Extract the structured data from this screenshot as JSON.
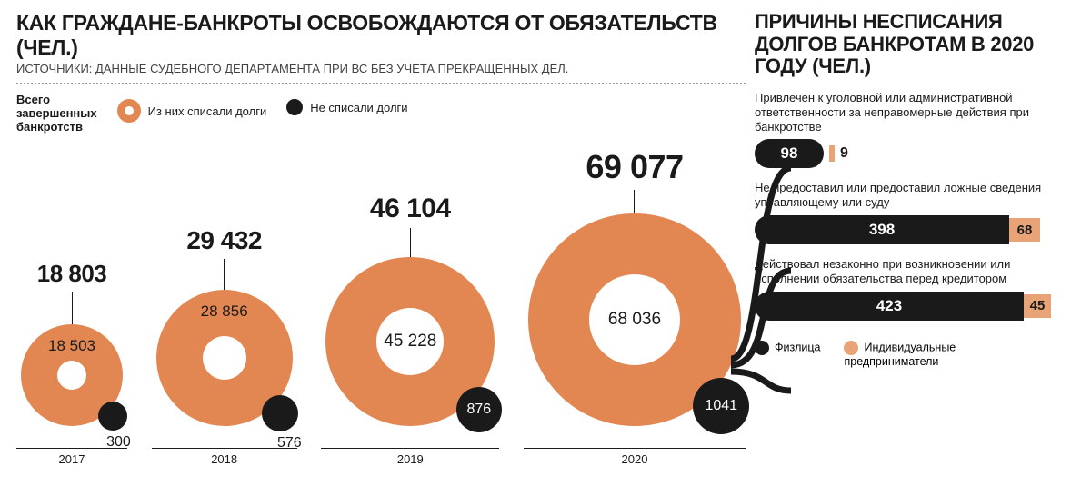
{
  "colors": {
    "orange": "#e38752",
    "orange_light": "#e8a477",
    "black": "#1a1a1a",
    "white": "#ffffff",
    "text": "#1a1a1a",
    "grey": "#424242"
  },
  "left": {
    "title": "КАК ГРАЖДАНЕ-БАНКРОТЫ ОСВОБОЖДАЮТСЯ ОТ ОБЯЗАТЕЛЬСТВ (ЧЕЛ.)",
    "subtitle": "ИСТОЧНИКИ: ДАННЫЕ СУДЕБНОГО ДЕПАРТАМЕНТА ПРИ ВС БЕЗ УЧЕТА ПРЕКРАЩЕННЫХ ДЕЛ.",
    "legend_total": "Всего\nзавершенных\nбанкротств",
    "legend_written_off": "Из них списали долги",
    "legend_not_written": "Не списали долги",
    "years": [
      {
        "year": "2017",
        "total": "18 803",
        "written": "18 503",
        "not_written": "300",
        "total_fontsize": 26,
        "donut_outer_d": 112,
        "donut_inner_d": 32,
        "written_val_pos": "top",
        "black_d": 32,
        "black_has_inner_text": false,
        "axis_h": 36
      },
      {
        "year": "2018",
        "total": "29 432",
        "written": "28 856",
        "not_written": "576",
        "total_fontsize": 28,
        "donut_outer_d": 150,
        "donut_inner_d": 48,
        "written_val_pos": "top",
        "black_d": 40,
        "black_has_inner_text": false,
        "axis_h": 34
      },
      {
        "year": "2019",
        "total": "46 104",
        "written": "45 228",
        "not_written": "876",
        "total_fontsize": 30,
        "donut_outer_d": 186,
        "donut_inner_d": 74,
        "written_val_pos": "center",
        "black_d": 50,
        "black_has_inner_text": true,
        "axis_h": 32
      },
      {
        "year": "2020",
        "total": "69 077",
        "written": "68 036",
        "not_written": "1041",
        "total_fontsize": 36,
        "donut_outer_d": 234,
        "donut_inner_d": 100,
        "written_val_pos": "center",
        "black_d": 62,
        "black_has_inner_text": true,
        "axis_h": 26
      }
    ]
  },
  "right": {
    "title": "ПРИЧИНЫ НЕСПИСАНИЯ ДОЛГОВ БАНКРОТАМ В 2020 ГОДУ (ЧЕЛ.)",
    "reasons": [
      {
        "text": "Привлечен к уголовной или административной ответственности за неправомерные действия при банкротстве",
        "main": "98",
        "ent": "9",
        "main_w": 76,
        "ent_w": 6,
        "ent_outside": true
      },
      {
        "text": "Не предоставил или предоставил ложные сведения управляющему или суду",
        "main": "398",
        "ent": "68",
        "main_w": 280,
        "ent_w": 34,
        "ent_outside": false
      },
      {
        "text": "Действовал незаконно при возникновении или исполнении обязательства перед кредитором",
        "main": "423",
        "ent": "45",
        "main_w": 296,
        "ent_w": 30,
        "ent_outside": false
      }
    ],
    "legend_individual": "Физлица",
    "legend_entrepreneur": "Индивидуальные предприниматели"
  }
}
